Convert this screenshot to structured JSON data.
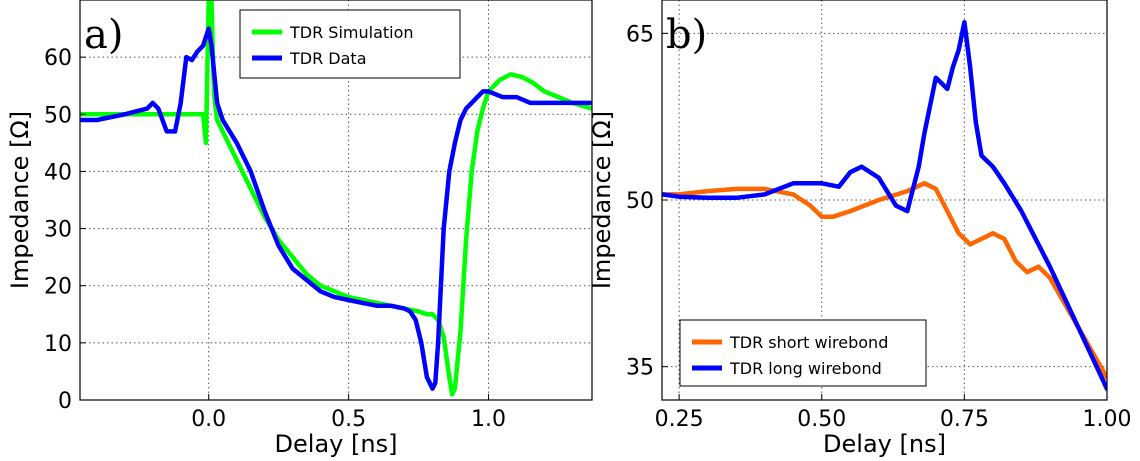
{
  "chart_data": [
    {
      "type": "line",
      "panel_label": "a)",
      "xlabel": "Delay [ns]",
      "ylabel": "Impedance [Ω]",
      "xlim": [
        -0.46,
        1.37
      ],
      "ylim": [
        0,
        70
      ],
      "xticks": [
        0.0,
        0.5,
        1.0
      ],
      "xtick_labels": [
        "0.0",
        "0.5",
        "1.0"
      ],
      "yticks": [
        0,
        10,
        20,
        30,
        40,
        50,
        60
      ],
      "ytick_labels": [
        "0",
        "10",
        "20",
        "30",
        "40",
        "50",
        "60"
      ],
      "grid": true,
      "legend_position": "top-center",
      "series": [
        {
          "name": "TDR Simulation",
          "color": "#00ff00",
          "x": [
            -0.46,
            -0.3,
            -0.1,
            -0.02,
            -0.01,
            0.0,
            0.005,
            0.01,
            0.015,
            0.02,
            0.03,
            0.05,
            0.1,
            0.15,
            0.2,
            0.25,
            0.3,
            0.35,
            0.4,
            0.45,
            0.5,
            0.55,
            0.6,
            0.65,
            0.7,
            0.75,
            0.78,
            0.8,
            0.82,
            0.84,
            0.86,
            0.87,
            0.88,
            0.9,
            0.92,
            0.94,
            0.96,
            0.98,
            1.0,
            1.04,
            1.08,
            1.12,
            1.16,
            1.2,
            1.25,
            1.3,
            1.37
          ],
          "y": [
            50,
            50,
            50,
            50,
            45,
            70,
            70,
            70,
            60,
            53,
            49,
            47,
            42,
            37,
            32,
            28,
            25,
            22,
            20,
            19,
            18,
            17.5,
            17,
            16.5,
            16,
            15.5,
            15,
            15,
            14,
            11,
            4,
            1,
            2,
            12,
            28,
            40,
            47,
            51,
            54,
            56,
            57,
            56.5,
            55.5,
            54,
            53,
            52,
            51
          ]
        },
        {
          "name": "TDR Data",
          "color": "#0000ff",
          "x": [
            -0.46,
            -0.4,
            -0.3,
            -0.22,
            -0.2,
            -0.18,
            -0.15,
            -0.12,
            -0.1,
            -0.08,
            -0.06,
            -0.04,
            -0.02,
            0.0,
            0.01,
            0.03,
            0.05,
            0.1,
            0.15,
            0.2,
            0.25,
            0.3,
            0.35,
            0.4,
            0.45,
            0.5,
            0.55,
            0.6,
            0.65,
            0.7,
            0.72,
            0.74,
            0.76,
            0.78,
            0.8,
            0.81,
            0.82,
            0.84,
            0.86,
            0.88,
            0.9,
            0.92,
            0.94,
            0.96,
            0.98,
            1.0,
            1.05,
            1.1,
            1.15,
            1.2,
            1.25,
            1.3,
            1.37
          ],
          "y": [
            49,
            49,
            50,
            51,
            52,
            51,
            47,
            47,
            52,
            60,
            59.5,
            61,
            62,
            65,
            62,
            52,
            49,
            45,
            40,
            33,
            27,
            23,
            21,
            19,
            18,
            17.5,
            17,
            16.5,
            16.5,
            16,
            15.5,
            14,
            10,
            4,
            2,
            3,
            10,
            30,
            40,
            45,
            49,
            51,
            52,
            53,
            54,
            54,
            53,
            53,
            52,
            52,
            52,
            52,
            52
          ]
        }
      ]
    },
    {
      "type": "line",
      "panel_label": "b)",
      "xlabel": "Delay [ns]",
      "ylabel": "Impedance [Ω]",
      "xlim": [
        0.22,
        1.0
      ],
      "ylim": [
        32,
        68
      ],
      "xticks": [
        0.25,
        0.5,
        0.75,
        1.0
      ],
      "xtick_labels": [
        "0.25",
        "0.50",
        "0.75",
        "1.00"
      ],
      "yticks": [
        35,
        50,
        65
      ],
      "ytick_labels": [
        "35",
        "50",
        "65"
      ],
      "grid": true,
      "legend_position": "bottom-left",
      "series": [
        {
          "name": "TDR short wirebond",
          "color": "#ff6600",
          "x": [
            0.22,
            0.25,
            0.3,
            0.35,
            0.4,
            0.45,
            0.48,
            0.5,
            0.52,
            0.55,
            0.6,
            0.65,
            0.68,
            0.7,
            0.72,
            0.74,
            0.76,
            0.78,
            0.8,
            0.82,
            0.84,
            0.86,
            0.88,
            0.9,
            0.95,
            1.0
          ],
          "y": [
            50.5,
            50.5,
            50.8,
            51,
            51,
            50.5,
            49.5,
            48.5,
            48.5,
            49,
            50,
            50.8,
            51.5,
            51,
            49,
            47,
            46,
            46.5,
            47,
            46.5,
            44.5,
            43.5,
            44,
            43,
            38.5,
            34
          ]
        },
        {
          "name": "TDR long wirebond",
          "color": "#0000ff",
          "x": [
            0.22,
            0.25,
            0.3,
            0.35,
            0.4,
            0.45,
            0.5,
            0.53,
            0.55,
            0.57,
            0.6,
            0.63,
            0.65,
            0.67,
            0.68,
            0.7,
            0.71,
            0.72,
            0.73,
            0.74,
            0.75,
            0.76,
            0.77,
            0.78,
            0.8,
            0.82,
            0.85,
            0.9,
            0.95,
            1.0
          ],
          "y": [
            50.5,
            50.3,
            50.2,
            50.2,
            50.5,
            51.5,
            51.5,
            51.2,
            52.5,
            53,
            52,
            49.5,
            49,
            53,
            56,
            61,
            60.5,
            60,
            62,
            63.5,
            66,
            62,
            57,
            54,
            53,
            51.5,
            49,
            44,
            38.5,
            33
          ]
        }
      ]
    }
  ]
}
